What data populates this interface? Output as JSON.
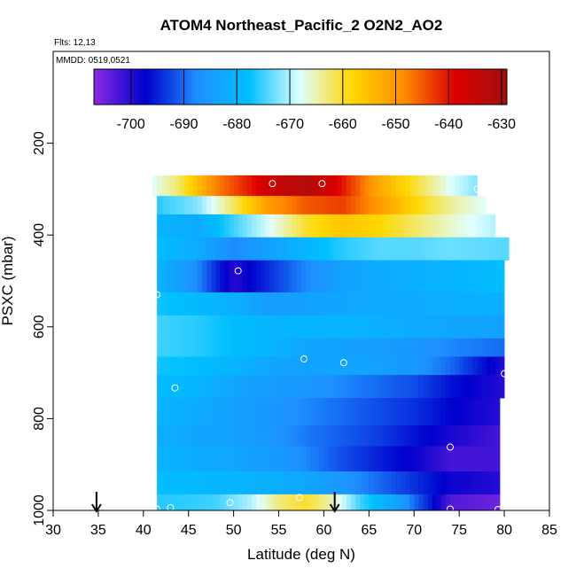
{
  "chart_data": {
    "type": "heatmap",
    "title": "ATOM4 Northeast_Pacific_2 O2N2_AO2",
    "flights_label": "Flts: 12,13",
    "mmdd_label": "MMDD: 0519,0521",
    "xlabel": "Latitude (deg N)",
    "ylabel": "PSXC (mbar)",
    "xlim": [
      30,
      85
    ],
    "ylim": [
      1000,
      0
    ],
    "x_ticks": [
      "30",
      "35",
      "40",
      "45",
      "50",
      "55",
      "60",
      "65",
      "70",
      "75",
      "80",
      "85"
    ],
    "y_ticks": [
      "200",
      "400",
      "600",
      "800",
      "1000"
    ],
    "colorbar": {
      "range": [
        -707,
        -629
      ],
      "ticks": [
        "-700",
        "-690",
        "-680",
        "-670",
        "-660",
        "-650",
        "-640",
        "-630"
      ],
      "tick_values": [
        -700,
        -690,
        -680,
        -670,
        -660,
        -650,
        -640,
        -630
      ],
      "colors": [
        "#8a2be2",
        "#0000cd",
        "#1e90ff",
        "#00bfff",
        "#e0ffff",
        "#ffd700",
        "#ff8c00",
        "#dc0000",
        "#a01010"
      ]
    },
    "pressure_bands": [
      {
        "p_top": 270,
        "p_bot": 315,
        "lat_start": 41,
        "lat_end": 77,
        "knots": [
          [
            41,
            -668
          ],
          [
            44,
            -662
          ],
          [
            48,
            -648
          ],
          [
            54,
            -636
          ],
          [
            58,
            -632
          ],
          [
            62,
            -640
          ],
          [
            66,
            -652
          ],
          [
            70,
            -660
          ],
          [
            74,
            -668
          ],
          [
            77,
            -672
          ]
        ]
      },
      {
        "p_top": 315,
        "p_bot": 355,
        "lat_start": 41.5,
        "lat_end": 78,
        "knots": [
          [
            41.5,
            -676
          ],
          [
            46,
            -672
          ],
          [
            50,
            -662
          ],
          [
            54,
            -650
          ],
          [
            58,
            -645
          ],
          [
            62,
            -643
          ],
          [
            66,
            -650
          ],
          [
            70,
            -658
          ],
          [
            74,
            -664
          ],
          [
            78,
            -668
          ]
        ]
      },
      {
        "p_top": 355,
        "p_bot": 405,
        "lat_start": 41.5,
        "lat_end": 79,
        "knots": [
          [
            41.5,
            -680
          ],
          [
            46,
            -682
          ],
          [
            50,
            -675
          ],
          [
            54,
            -668
          ],
          [
            58,
            -660
          ],
          [
            62,
            -656
          ],
          [
            66,
            -658
          ],
          [
            70,
            -662
          ],
          [
            74,
            -666
          ],
          [
            79,
            -670
          ]
        ]
      },
      {
        "p_top": 405,
        "p_bot": 455,
        "lat_start": 41.5,
        "lat_end": 80.5,
        "knots": [
          [
            41.5,
            -678
          ],
          [
            46,
            -682
          ],
          [
            50,
            -688
          ],
          [
            54,
            -684
          ],
          [
            58,
            -680
          ],
          [
            62,
            -676
          ],
          [
            66,
            -674
          ],
          [
            70,
            -674
          ],
          [
            74,
            -673
          ],
          [
            80.5,
            -674
          ]
        ]
      },
      {
        "p_top": 455,
        "p_bot": 525,
        "lat_start": 41.5,
        "lat_end": 80,
        "knots": [
          [
            41.5,
            -680
          ],
          [
            46,
            -688
          ],
          [
            50,
            -700
          ],
          [
            54,
            -694
          ],
          [
            58,
            -688
          ],
          [
            62,
            -684
          ],
          [
            66,
            -682
          ],
          [
            70,
            -681
          ],
          [
            74,
            -680
          ],
          [
            80,
            -678
          ]
        ]
      },
      {
        "p_top": 525,
        "p_bot": 575,
        "lat_start": 41.5,
        "lat_end": 80,
        "knots": [
          [
            41.5,
            -677
          ],
          [
            46,
            -679
          ],
          [
            50,
            -681
          ],
          [
            54,
            -685
          ],
          [
            58,
            -684
          ],
          [
            62,
            -683
          ],
          [
            66,
            -682
          ],
          [
            70,
            -682
          ],
          [
            74,
            -681
          ],
          [
            80,
            -681
          ]
        ]
      },
      {
        "p_top": 575,
        "p_bot": 625,
        "lat_start": 41.5,
        "lat_end": 80,
        "knots": [
          [
            41.5,
            -675
          ],
          [
            46,
            -676
          ],
          [
            50,
            -678
          ],
          [
            54,
            -680
          ],
          [
            58,
            -680
          ],
          [
            62,
            -680
          ],
          [
            66,
            -681
          ],
          [
            70,
            -682
          ],
          [
            74,
            -683
          ],
          [
            80,
            -684
          ]
        ]
      },
      {
        "p_top": 625,
        "p_bot": 665,
        "lat_start": 41.5,
        "lat_end": 80,
        "knots": [
          [
            41.5,
            -675
          ],
          [
            46,
            -676
          ],
          [
            50,
            -678
          ],
          [
            54,
            -680
          ],
          [
            58,
            -683
          ],
          [
            62,
            -684
          ],
          [
            66,
            -685
          ],
          [
            70,
            -686
          ],
          [
            74,
            -688
          ],
          [
            80,
            -690
          ]
        ]
      },
      {
        "p_top": 665,
        "p_bot": 705,
        "lat_start": 41.5,
        "lat_end": 80,
        "knots": [
          [
            41.5,
            -677
          ],
          [
            46,
            -678
          ],
          [
            50,
            -680
          ],
          [
            54,
            -683
          ],
          [
            58,
            -684
          ],
          [
            62,
            -683
          ],
          [
            66,
            -684
          ],
          [
            70,
            -686
          ],
          [
            74,
            -690
          ],
          [
            80,
            -700
          ]
        ]
      },
      {
        "p_top": 705,
        "p_bot": 755,
        "lat_start": 41.5,
        "lat_end": 80,
        "knots": [
          [
            41.5,
            -678
          ],
          [
            46,
            -680
          ],
          [
            50,
            -683
          ],
          [
            54,
            -685
          ],
          [
            58,
            -686
          ],
          [
            62,
            -688
          ],
          [
            66,
            -690
          ],
          [
            70,
            -692
          ],
          [
            74,
            -696
          ],
          [
            80,
            -700
          ]
        ]
      },
      {
        "p_top": 755,
        "p_bot": 815,
        "lat_start": 41.5,
        "lat_end": 79.5,
        "knots": [
          [
            41.5,
            -680
          ],
          [
            46,
            -682
          ],
          [
            50,
            -684
          ],
          [
            54,
            -686
          ],
          [
            58,
            -688
          ],
          [
            62,
            -690
          ],
          [
            66,
            -692
          ],
          [
            70,
            -694
          ],
          [
            74,
            -697
          ],
          [
            79.5,
            -700
          ]
        ]
      },
      {
        "p_top": 815,
        "p_bot": 860,
        "lat_start": 41.5,
        "lat_end": 79.5,
        "knots": [
          [
            41.5,
            -681
          ],
          [
            46,
            -683
          ],
          [
            50,
            -684
          ],
          [
            54,
            -686
          ],
          [
            58,
            -689
          ],
          [
            62,
            -691
          ],
          [
            66,
            -693
          ],
          [
            70,
            -696
          ],
          [
            74,
            -699
          ],
          [
            79.5,
            -702
          ]
        ]
      },
      {
        "p_top": 860,
        "p_bot": 915,
        "lat_start": 41.5,
        "lat_end": 79.5,
        "knots": [
          [
            41.5,
            -680
          ],
          [
            46,
            -682
          ],
          [
            50,
            -683
          ],
          [
            54,
            -685
          ],
          [
            58,
            -688
          ],
          [
            62,
            -692
          ],
          [
            66,
            -695
          ],
          [
            70,
            -698
          ],
          [
            74,
            -702
          ],
          [
            79.5,
            -702
          ]
        ]
      },
      {
        "p_top": 915,
        "p_bot": 965,
        "lat_start": 41.5,
        "lat_end": 79.5,
        "knots": [
          [
            41.5,
            -678
          ],
          [
            46,
            -679
          ],
          [
            50,
            -680
          ],
          [
            54,
            -681
          ],
          [
            58,
            -683
          ],
          [
            62,
            -686
          ],
          [
            66,
            -690
          ],
          [
            70,
            -694
          ],
          [
            74,
            -698
          ],
          [
            79.5,
            -700
          ]
        ]
      },
      {
        "p_top": 965,
        "p_bot": 1000,
        "lat_start": 41.5,
        "lat_end": 79.5,
        "knots": [
          [
            41.5,
            -676
          ],
          [
            44,
            -676
          ],
          [
            48,
            -675
          ],
          [
            52,
            -670
          ],
          [
            55,
            -663
          ],
          [
            58,
            -660
          ],
          [
            61,
            -665
          ],
          [
            64,
            -675
          ],
          [
            68,
            -683
          ],
          [
            70,
            -690
          ],
          [
            72,
            -696
          ],
          [
            74,
            -703
          ],
          [
            79.5,
            -705
          ]
        ]
      }
    ],
    "sample_points": [
      {
        "lat": 54.3,
        "p": 288
      },
      {
        "lat": 59.8,
        "p": 288
      },
      {
        "lat": 77.0,
        "p": 300
      },
      {
        "lat": 50.5,
        "p": 478
      },
      {
        "lat": 41.5,
        "p": 530
      },
      {
        "lat": 57.8,
        "p": 670
      },
      {
        "lat": 62.2,
        "p": 678
      },
      {
        "lat": 80.0,
        "p": 702
      },
      {
        "lat": 43.5,
        "p": 733
      },
      {
        "lat": 74.0,
        "p": 862
      },
      {
        "lat": 57.3,
        "p": 972
      },
      {
        "lat": 49.6,
        "p": 983
      },
      {
        "lat": 41.5,
        "p": 997
      },
      {
        "lat": 43.0,
        "p": 994
      },
      {
        "lat": 74.0,
        "p": 997
      },
      {
        "lat": 79.3,
        "p": 998
      }
    ],
    "arrows": [
      {
        "lat": 34.8
      },
      {
        "lat": 61.2
      }
    ]
  }
}
